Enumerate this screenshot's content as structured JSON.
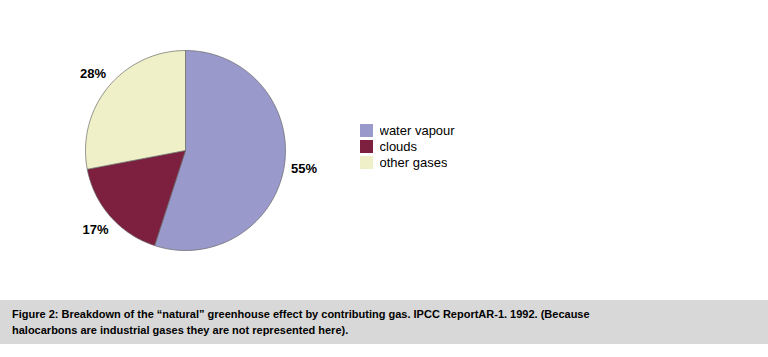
{
  "chart_data": {
    "type": "pie",
    "categories": [
      "water vapour",
      "clouds",
      "other gases"
    ],
    "values": [
      55,
      17,
      28
    ],
    "value_labels": [
      "55%",
      "17%",
      "28%"
    ],
    "colors": [
      "#9999cc",
      "#7d1f3f",
      "#f0f0c8"
    ],
    "data_labels": true,
    "legend": "right",
    "caption": [
      "Figure 2: Breakdown of the “natural” greenhouse effect by contributing gas. IPCC ReportAR-1. 1992.  (Because",
      "halocarbons are industrial gases they are not represented here)."
    ]
  }
}
